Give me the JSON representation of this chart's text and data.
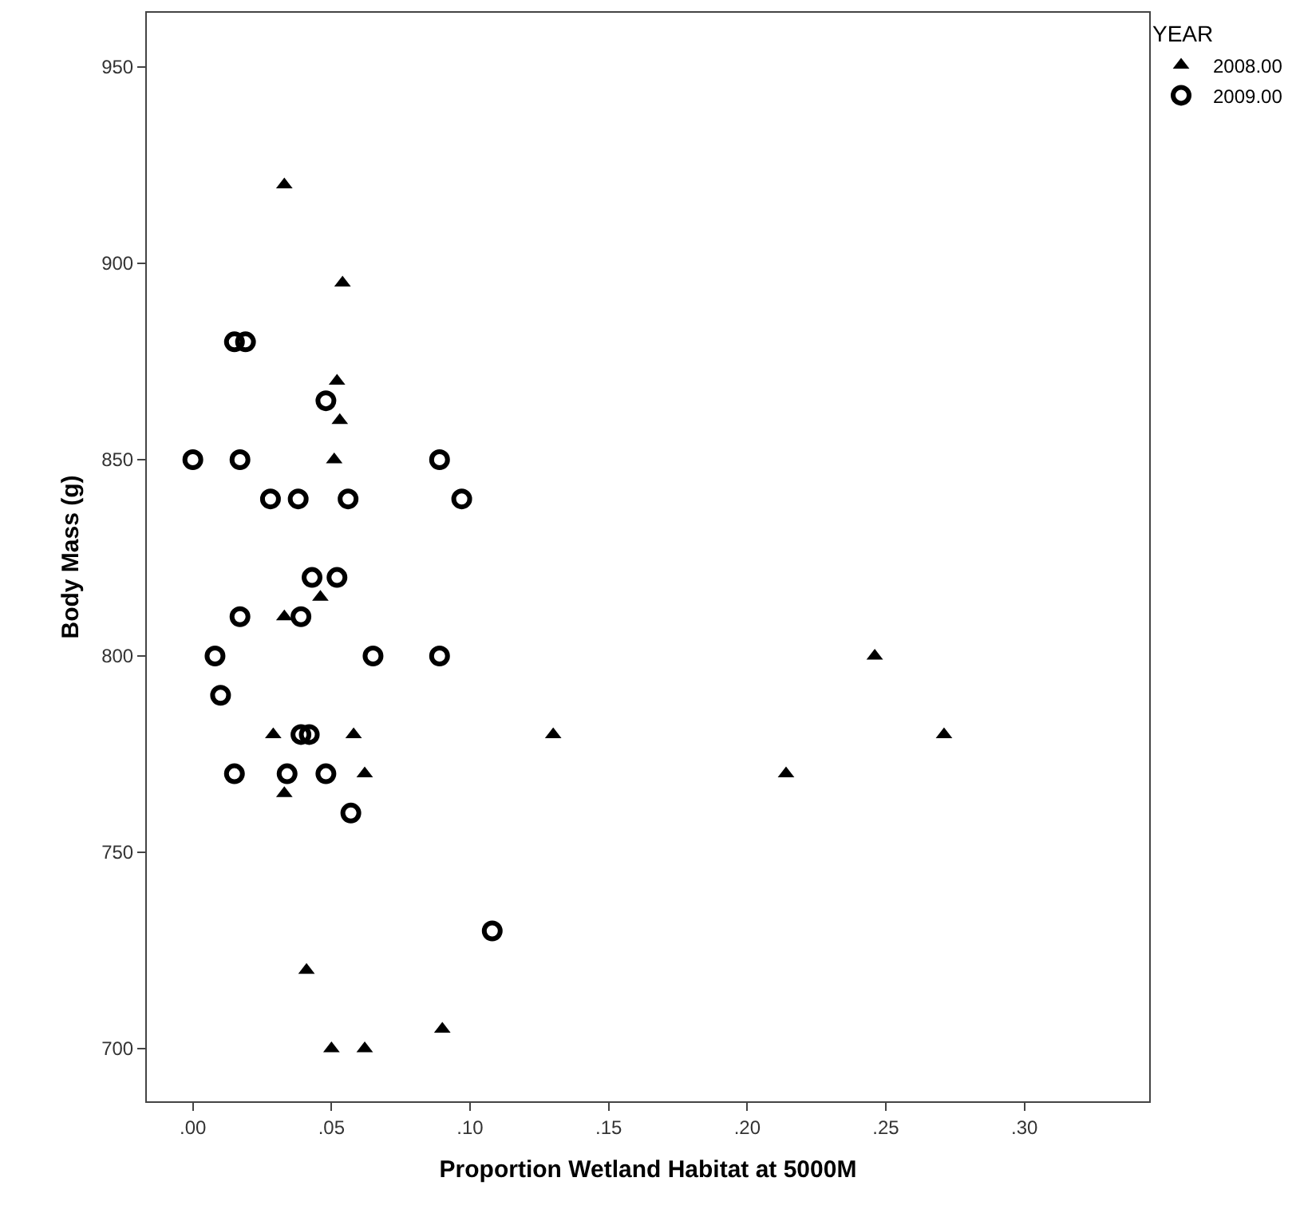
{
  "chart_data": {
    "type": "scatter",
    "xlabel": "Proportion Wetland Habitat at 5000M",
    "ylabel": "Body Mass (g)",
    "legend_title": "YEAR",
    "legend": "top right",
    "xlim": [
      -0.0166,
      0.345
    ],
    "ylim": [
      686.6,
      963.8
    ],
    "xticks": [
      {
        "value": 0,
        "label": ".00"
      },
      {
        "value": 0.05,
        "label": ".05"
      },
      {
        "value": 0.1,
        "label": ".10"
      },
      {
        "value": 0.15,
        "label": ".15"
      },
      {
        "value": 0.2,
        "label": ".20"
      },
      {
        "value": 0.25,
        "label": ".25"
      },
      {
        "value": 0.3,
        "label": ".30"
      }
    ],
    "yticks": [
      700,
      750,
      800,
      850,
      900,
      950
    ],
    "series": [
      {
        "name": "2008.00",
        "color": "#000000",
        "marker": "triangle",
        "x": [
          0.033,
          0.054,
          0.052,
          0.053,
          0.051,
          0.033,
          0.046,
          0.029,
          0.058,
          0.13,
          0.062,
          0.033,
          0.041,
          0.09,
          0.05,
          0.062,
          0.214,
          0.246,
          0.271
        ],
        "values": [
          920,
          895,
          870,
          860,
          850,
          810,
          815,
          780,
          780,
          780,
          770,
          765,
          720,
          705,
          700,
          700,
          770,
          800,
          780
        ]
      },
      {
        "name": "2009.00",
        "color": "#000000",
        "marker": "circle",
        "x": [
          0.015,
          0.019,
          0.048,
          0.0,
          0.017,
          0.089,
          0.028,
          0.038,
          0.056,
          0.097,
          0.043,
          0.052,
          0.017,
          0.039,
          0.008,
          0.065,
          0.089,
          0.01,
          0.039,
          0.042,
          0.015,
          0.034,
          0.048,
          0.057,
          0.108
        ],
        "values": [
          880,
          880,
          865,
          850,
          850,
          850,
          840,
          840,
          840,
          840,
          820,
          820,
          810,
          810,
          800,
          800,
          800,
          790,
          780,
          780,
          770,
          770,
          770,
          760,
          730
        ]
      }
    ]
  }
}
